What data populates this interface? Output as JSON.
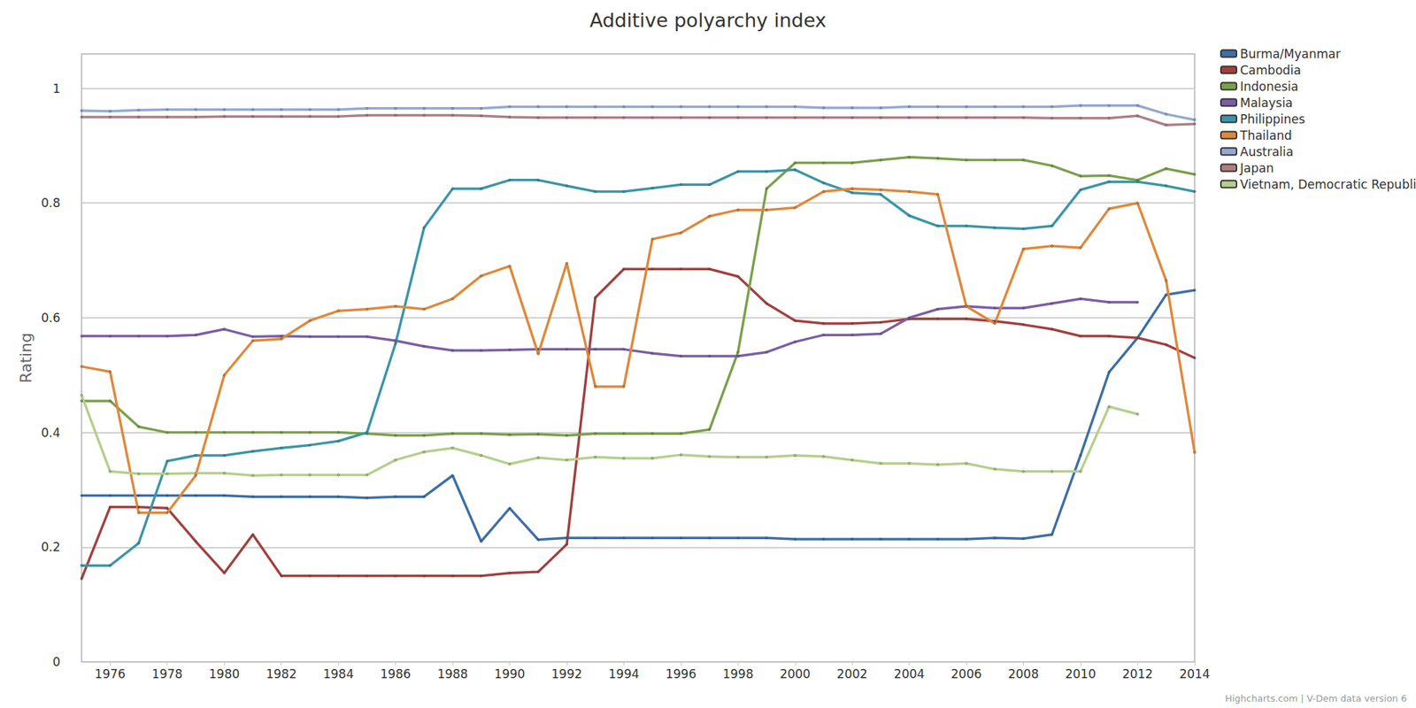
{
  "chart_data": {
    "type": "line",
    "title": "Additive polyarchy index",
    "y_label": "Rating",
    "source": "Highcharts.com | V-Dem data version 6",
    "x": [
      1975,
      1976,
      1977,
      1978,
      1979,
      1980,
      1981,
      1982,
      1983,
      1984,
      1985,
      1986,
      1987,
      1988,
      1989,
      1990,
      1991,
      1992,
      1993,
      1994,
      1995,
      1996,
      1997,
      1998,
      1999,
      2000,
      2001,
      2002,
      2003,
      2004,
      2005,
      2006,
      2007,
      2008,
      2009,
      2010,
      2011,
      2012,
      2013,
      2014
    ],
    "xlim": [
      1975,
      2014
    ],
    "xticks": [
      1976,
      1978,
      1980,
      1982,
      1984,
      1986,
      1988,
      1990,
      1992,
      1994,
      1996,
      1998,
      2000,
      2002,
      2004,
      2006,
      2008,
      2010,
      2012,
      2014
    ],
    "ylim": [
      0,
      1.06
    ],
    "yticks": [
      0,
      0.2,
      0.4,
      0.6,
      0.8,
      1
    ],
    "grid": true,
    "legend": "top-right",
    "marker": "circle",
    "series": [
      {
        "name": "Burma/Myanmar",
        "color": "#3d6fa6",
        "values": [
          0.29,
          0.29,
          0.29,
          0.29,
          0.29,
          0.29,
          0.288,
          0.288,
          0.288,
          0.288,
          0.286,
          0.288,
          0.288,
          0.325,
          0.21,
          0.268,
          0.213,
          0.216,
          0.216,
          0.216,
          0.216,
          0.216,
          0.216,
          0.216,
          0.216,
          0.214,
          0.214,
          0.214,
          0.214,
          0.214,
          0.214,
          0.214,
          0.216,
          0.215,
          0.222,
          0.36,
          0.505,
          0.565,
          0.64,
          0.648
        ]
      },
      {
        "name": "Cambodia",
        "color": "#a2403e",
        "values": [
          0.145,
          0.27,
          0.27,
          0.268,
          0.21,
          0.155,
          0.222,
          0.15,
          0.15,
          0.15,
          0.15,
          0.15,
          0.15,
          0.15,
          0.15,
          0.155,
          0.157,
          0.205,
          0.635,
          0.685,
          0.685,
          0.685,
          0.685,
          0.672,
          0.625,
          0.595,
          0.59,
          0.59,
          0.592,
          0.598,
          0.598,
          0.598,
          0.594,
          0.588,
          0.58,
          0.568,
          0.568,
          0.565,
          0.553,
          0.53
        ]
      },
      {
        "name": "Indonesia",
        "color": "#7aa14a",
        "values": [
          0.455,
          0.455,
          0.41,
          0.4,
          0.4,
          0.4,
          0.4,
          0.4,
          0.4,
          0.4,
          0.398,
          0.395,
          0.395,
          0.398,
          0.398,
          0.396,
          0.397,
          0.395,
          0.398,
          0.398,
          0.398,
          0.398,
          0.405,
          0.54,
          0.825,
          0.87,
          0.87,
          0.87,
          0.875,
          0.88,
          0.878,
          0.875,
          0.875,
          0.875,
          0.865,
          0.847,
          0.848,
          0.84,
          0.86,
          0.85
        ]
      },
      {
        "name": "Malaysia",
        "color": "#7b5ea6",
        "values": [
          0.568,
          0.568,
          0.568,
          0.568,
          0.57,
          0.58,
          0.567,
          0.568,
          0.567,
          0.567,
          0.567,
          0.56,
          0.55,
          0.543,
          0.543,
          0.544,
          0.545,
          0.545,
          0.545,
          0.545,
          0.538,
          0.533,
          0.533,
          0.533,
          0.54,
          0.558,
          0.57,
          0.57,
          0.572,
          0.6,
          0.615,
          0.62,
          0.617,
          0.617,
          0.625,
          0.633,
          0.627,
          0.627,
          null,
          null
        ]
      },
      {
        "name": "Philippines",
        "color": "#3a96a8",
        "values": [
          0.168,
          0.168,
          0.207,
          0.35,
          0.36,
          0.36,
          0.367,
          0.373,
          0.378,
          0.385,
          0.4,
          0.555,
          0.757,
          0.825,
          0.825,
          0.84,
          0.84,
          0.83,
          0.82,
          0.82,
          0.826,
          0.832,
          0.832,
          0.855,
          0.855,
          0.858,
          0.835,
          0.818,
          0.815,
          0.778,
          0.76,
          0.76,
          0.757,
          0.755,
          0.76,
          0.823,
          0.837,
          0.837,
          0.83,
          0.82
        ]
      },
      {
        "name": "Thailand",
        "color": "#e0883a",
        "values": [
          0.515,
          0.506,
          0.26,
          0.26,
          0.325,
          0.5,
          0.56,
          0.563,
          0.595,
          0.612,
          0.615,
          0.62,
          0.615,
          0.633,
          0.673,
          0.69,
          0.537,
          0.695,
          0.48,
          0.48,
          0.737,
          0.748,
          0.777,
          0.788,
          0.788,
          0.792,
          0.82,
          0.825,
          0.823,
          0.82,
          0.815,
          0.62,
          0.59,
          0.72,
          0.725,
          0.722,
          0.79,
          0.8,
          0.665,
          0.365
        ]
      },
      {
        "name": "Australia",
        "color": "#93a9d1",
        "values": [
          0.961,
          0.96,
          0.962,
          0.963,
          0.963,
          0.963,
          0.963,
          0.963,
          0.963,
          0.963,
          0.965,
          0.965,
          0.965,
          0.965,
          0.965,
          0.968,
          0.968,
          0.968,
          0.968,
          0.968,
          0.968,
          0.968,
          0.968,
          0.968,
          0.968,
          0.968,
          0.966,
          0.966,
          0.966,
          0.968,
          0.968,
          0.968,
          0.968,
          0.968,
          0.968,
          0.97,
          0.97,
          0.97,
          0.955,
          0.945
        ]
      },
      {
        "name": "Japan",
        "color": "#b07e86",
        "values": [
          0.95,
          0.95,
          0.95,
          0.95,
          0.95,
          0.951,
          0.951,
          0.951,
          0.951,
          0.951,
          0.953,
          0.953,
          0.953,
          0.953,
          0.952,
          0.95,
          0.949,
          0.949,
          0.949,
          0.949,
          0.949,
          0.949,
          0.949,
          0.949,
          0.949,
          0.949,
          0.949,
          0.949,
          0.949,
          0.949,
          0.949,
          0.949,
          0.949,
          0.949,
          0.948,
          0.948,
          0.948,
          0.952,
          0.936,
          0.938
        ]
      },
      {
        "name": "Vietnam, Democratic Republic of",
        "color": "#b5cf8b",
        "values": [
          0.465,
          0.332,
          0.328,
          0.328,
          0.329,
          0.329,
          0.325,
          0.326,
          0.326,
          0.326,
          0.326,
          0.352,
          0.366,
          0.373,
          0.36,
          0.345,
          0.356,
          0.352,
          0.357,
          0.355,
          0.355,
          0.361,
          0.358,
          0.357,
          0.357,
          0.36,
          0.358,
          0.352,
          0.346,
          0.346,
          0.344,
          0.346,
          0.336,
          0.332,
          0.332,
          0.332,
          0.445,
          0.432,
          null,
          null
        ]
      }
    ]
  }
}
